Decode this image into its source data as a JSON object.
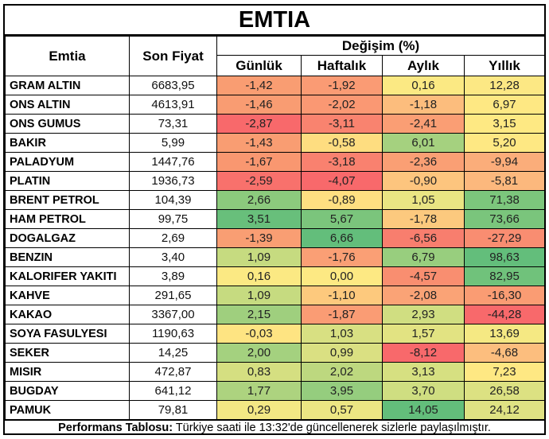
{
  "title": "EMTIA",
  "header": {
    "emtia": "Emtia",
    "son_fiyat": "Son Fiyat",
    "degisim": "Değişim (%)",
    "sub": {
      "gunluk": "Günlük",
      "haftalik": "Haftalık",
      "aylik": "Aylık",
      "yillik": "Yıllık"
    }
  },
  "scale_colors": {
    "min_red": "#F8696B",
    "mid_yellow": "#FFEB84",
    "max_green": "#63BE7B"
  },
  "rows": [
    {
      "name": "GRAM ALTIN",
      "price": "6683,95",
      "changes": [
        {
          "v": "-1,42",
          "c": "#F99D72"
        },
        {
          "v": "-1,92",
          "c": "#FA9B74"
        },
        {
          "v": "0,16",
          "c": "#FBE983"
        },
        {
          "v": "12,28",
          "c": "#FCE884"
        }
      ]
    },
    {
      "name": "ONS ALTIN",
      "price": "4613,91",
      "changes": [
        {
          "v": "-1,46",
          "c": "#F99C72"
        },
        {
          "v": "-2,02",
          "c": "#FA9873"
        },
        {
          "v": "-1,18",
          "c": "#FCBD7D"
        },
        {
          "v": "6,97",
          "c": "#FEE883"
        }
      ]
    },
    {
      "name": "ONS GUMUS",
      "price": "73,31",
      "changes": [
        {
          "v": "-2,87",
          "c": "#F8696B"
        },
        {
          "v": "-3,11",
          "c": "#F9836F"
        },
        {
          "v": "-2,41",
          "c": "#FA9E74"
        },
        {
          "v": "3,15",
          "c": "#FEE983"
        }
      ]
    },
    {
      "name": "BAKIR",
      "price": "5,99",
      "changes": [
        {
          "v": "-1,43",
          "c": "#F99D72"
        },
        {
          "v": "-0,58",
          "c": "#FEDD80"
        },
        {
          "v": "6,01",
          "c": "#A5D17F"
        },
        {
          "v": "5,20",
          "c": "#FEE883"
        }
      ]
    },
    {
      "name": "PALADYUM",
      "price": "1447,76",
      "changes": [
        {
          "v": "-1,67",
          "c": "#F99770"
        },
        {
          "v": "-3,18",
          "c": "#F9816F"
        },
        {
          "v": "-2,36",
          "c": "#FA9F74"
        },
        {
          "v": "-9,94",
          "c": "#FBAD7A"
        }
      ]
    },
    {
      "name": "PLATIN",
      "price": "1936,73",
      "changes": [
        {
          "v": "-2,59",
          "c": "#F8716C"
        },
        {
          "v": "-4,07",
          "c": "#F8696B"
        },
        {
          "v": "-0,90",
          "c": "#FDC57E"
        },
        {
          "v": "-5,81",
          "c": "#FCB87D"
        }
      ]
    },
    {
      "name": "BRENT PETROL",
      "price": "104,39",
      "changes": [
        {
          "v": "2,66",
          "c": "#8CCA7D"
        },
        {
          "v": "-0,89",
          "c": "#FEDF81"
        },
        {
          "v": "1,05",
          "c": "#E9E583"
        },
        {
          "v": "71,38",
          "c": "#7CC67C"
        }
      ]
    },
    {
      "name": "HAM PETROL",
      "price": "99,75",
      "changes": [
        {
          "v": "3,51",
          "c": "#68BF7B"
        },
        {
          "v": "5,67",
          "c": "#7BC57C"
        },
        {
          "v": "-1,78",
          "c": "#FCC97E"
        },
        {
          "v": "73,66",
          "c": "#7AC57C"
        }
      ]
    },
    {
      "name": "DOGALGAZ",
      "price": "2,69",
      "changes": [
        {
          "v": "-1,39",
          "c": "#F99E73"
        },
        {
          "v": "6,66",
          "c": "#63BE7B"
        },
        {
          "v": "-6,56",
          "c": "#F87E6E"
        },
        {
          "v": "-27,29",
          "c": "#F98D71"
        }
      ]
    },
    {
      "name": "BENZIN",
      "price": "3,40",
      "changes": [
        {
          "v": "1,09",
          "c": "#C6DB80"
        },
        {
          "v": "-1,76",
          "c": "#FA9F75"
        },
        {
          "v": "6,79",
          "c": "#98CE7E"
        },
        {
          "v": "98,63",
          "c": "#63BE7B"
        }
      ]
    },
    {
      "name": "KALORIFER YAKITI",
      "price": "3,89",
      "changes": [
        {
          "v": "0,16",
          "c": "#FBE983"
        },
        {
          "v": "0,00",
          "c": "#FDE983"
        },
        {
          "v": "-4,57",
          "c": "#F98E70"
        },
        {
          "v": "82,95",
          "c": "#70C27B"
        }
      ]
    },
    {
      "name": "KAHVE",
      "price": "291,65",
      "changes": [
        {
          "v": "1,09",
          "c": "#C6DB80"
        },
        {
          "v": "-1,10",
          "c": "#FDC97D"
        },
        {
          "v": "-2,08",
          "c": "#FAA376"
        },
        {
          "v": "-16,30",
          "c": "#FA9C73"
        }
      ]
    },
    {
      "name": "KAKAO",
      "price": "3367,00",
      "changes": [
        {
          "v": "2,15",
          "c": "#9FCF7E"
        },
        {
          "v": "-1,87",
          "c": "#FA9C74"
        },
        {
          "v": "2,93",
          "c": "#D0DE81"
        },
        {
          "v": "-44,28",
          "c": "#F8696B"
        }
      ]
    },
    {
      "name": "SOYA FASULYESI",
      "price": "1190,63",
      "changes": [
        {
          "v": "-0,03",
          "c": "#FEE482"
        },
        {
          "v": "1,03",
          "c": "#D8E082"
        },
        {
          "v": "1,57",
          "c": "#E2E382"
        },
        {
          "v": "13,69",
          "c": "#F5E983"
        }
      ]
    },
    {
      "name": "SEKER",
      "price": "14,25",
      "changes": [
        {
          "v": "2,00",
          "c": "#A4D17F"
        },
        {
          "v": "0,99",
          "c": "#DAE082"
        },
        {
          "v": "-8,12",
          "c": "#F8696B"
        },
        {
          "v": "-4,68",
          "c": "#FCBE7E"
        }
      ]
    },
    {
      "name": "MISIR",
      "price": "472,87",
      "changes": [
        {
          "v": "0,83",
          "c": "#D5DF81"
        },
        {
          "v": "2,02",
          "c": "#BDD87F"
        },
        {
          "v": "3,13",
          "c": "#D6E081"
        },
        {
          "v": "7,23",
          "c": "#FEE883"
        }
      ]
    },
    {
      "name": "BUGDAY",
      "price": "641,12",
      "changes": [
        {
          "v": "1,77",
          "c": "#ADD37F"
        },
        {
          "v": "3,95",
          "c": "#95CD7E"
        },
        {
          "v": "3,70",
          "c": "#CFDE81"
        },
        {
          "v": "26,58",
          "c": "#DCE182"
        }
      ]
    },
    {
      "name": "PAMUK",
      "price": "79,81",
      "changes": [
        {
          "v": "0,29",
          "c": "#F3E884"
        },
        {
          "v": "0,57",
          "c": "#ECE683"
        },
        {
          "v": "14,05",
          "c": "#63BE7B"
        },
        {
          "v": "24,12",
          "c": "#DFE283"
        }
      ]
    }
  ],
  "footer": {
    "label": "Performans Tablosu:",
    "text": " Türkiye saati ile 13:32'de güncellenerek sizlerle paylaşılmıştır."
  }
}
